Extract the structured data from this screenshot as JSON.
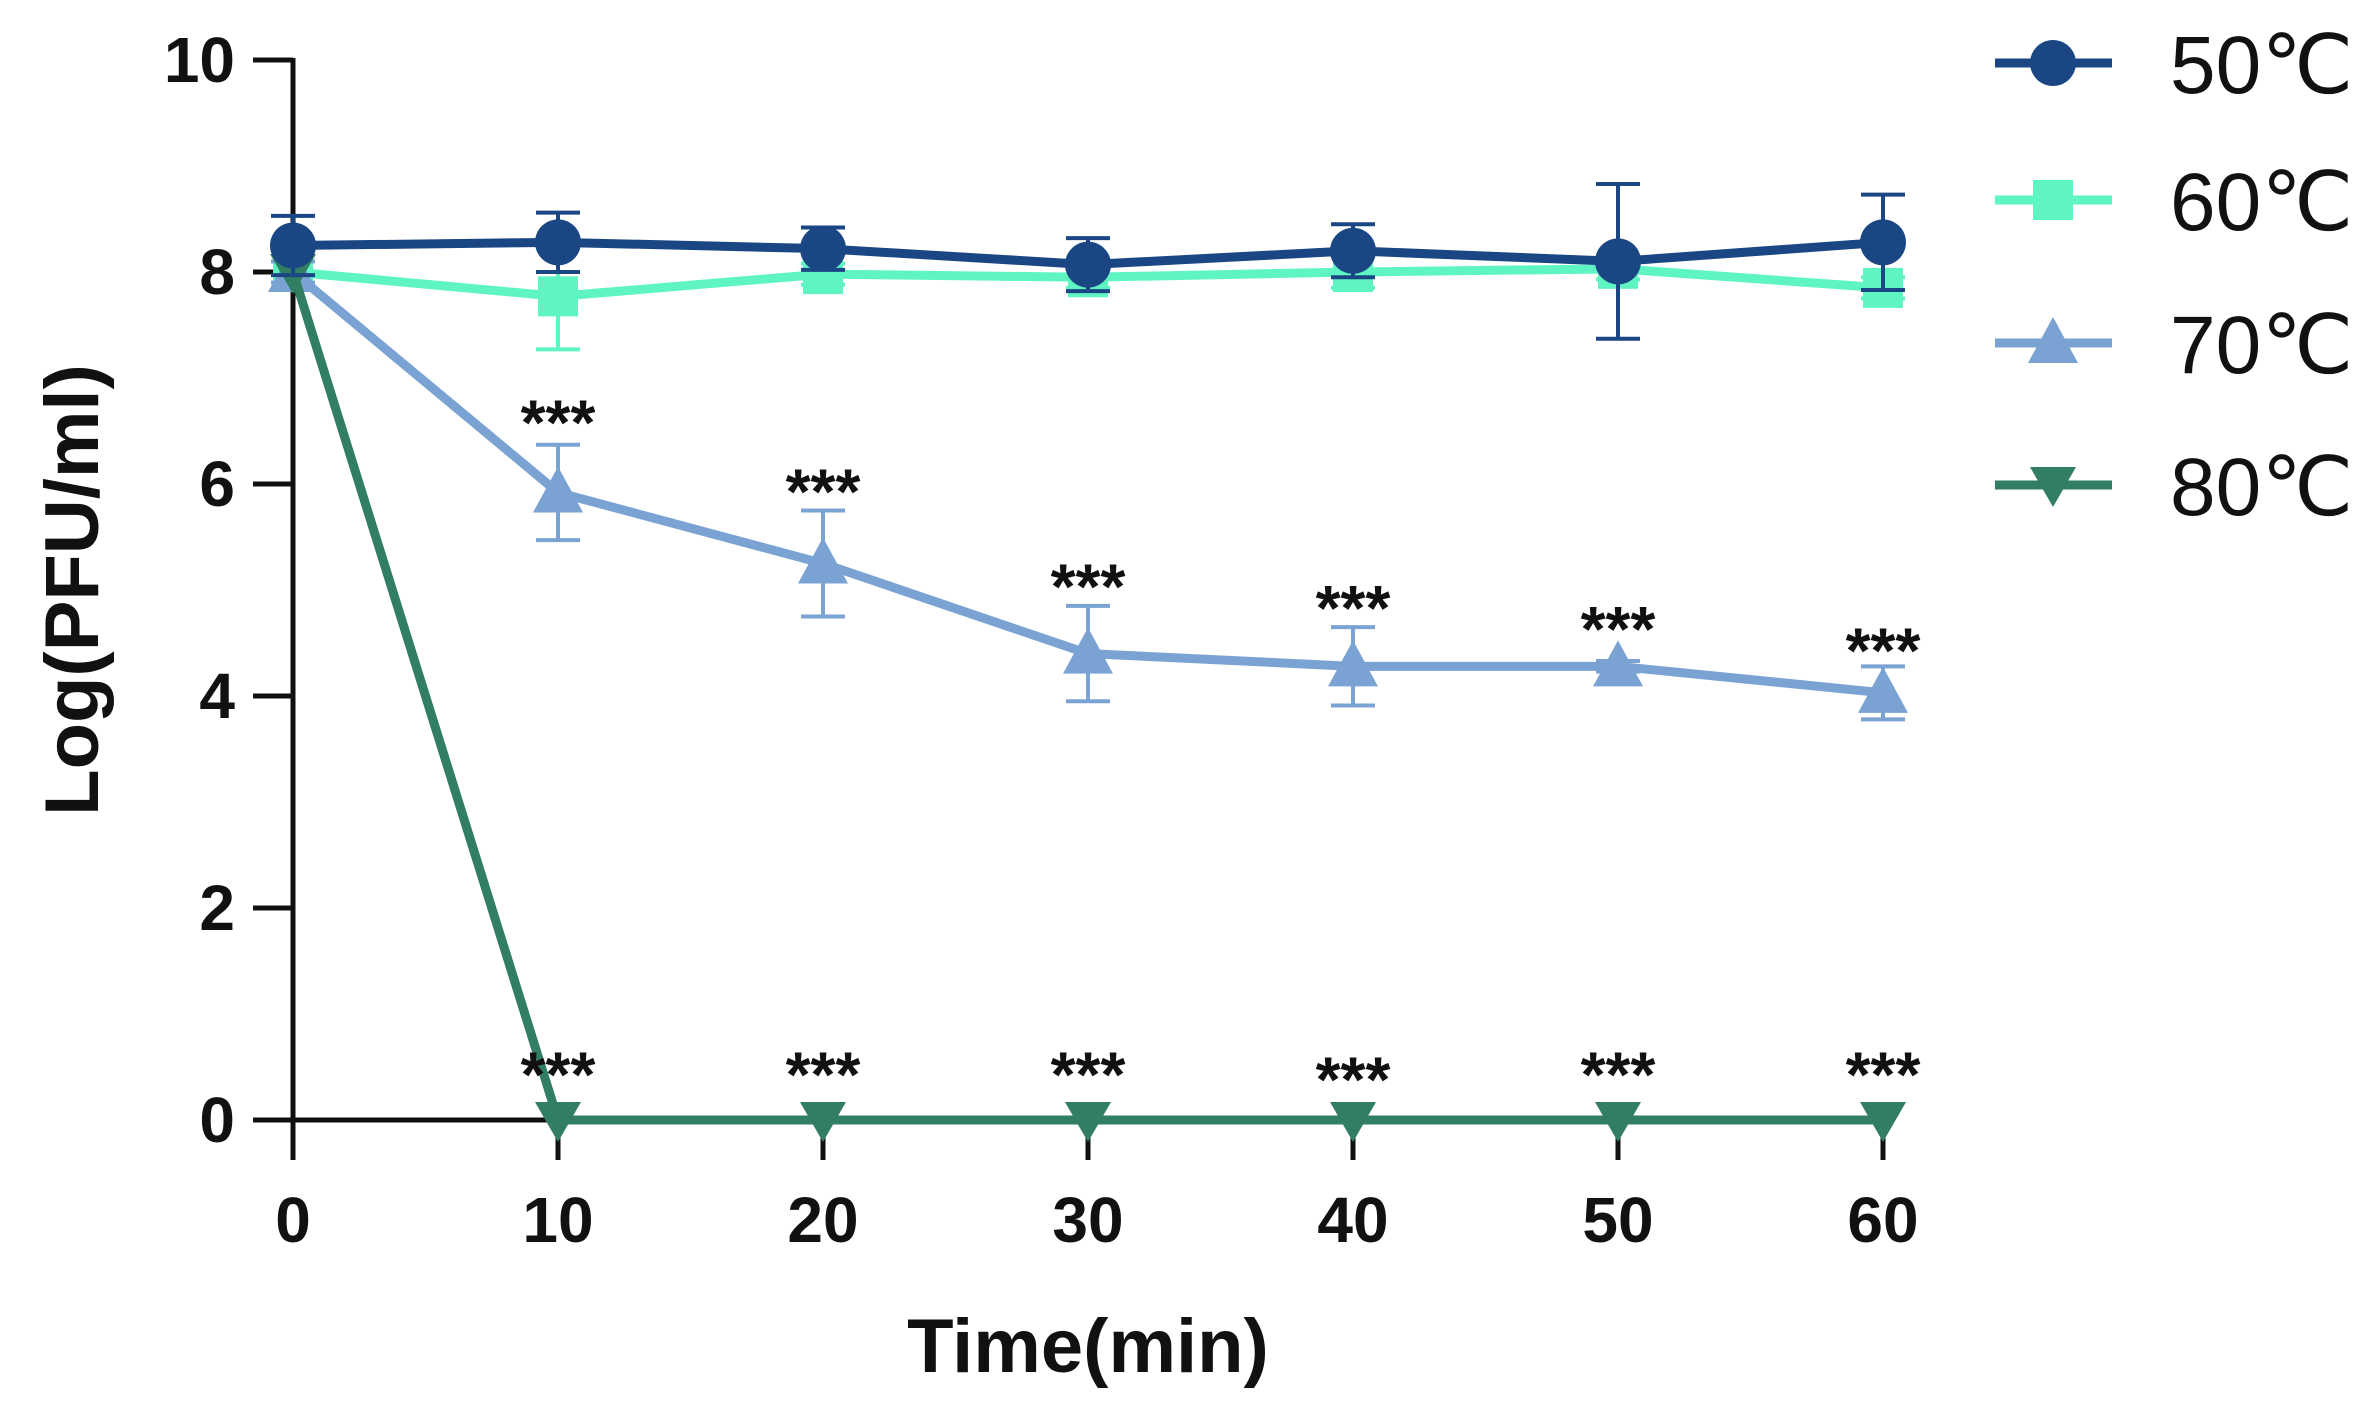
{
  "chart_data": {
    "type": "line",
    "title": "",
    "xlabel": "Time(min)",
    "ylabel": "Log(PFU/ml)",
    "x": [
      0,
      10,
      20,
      30,
      40,
      50,
      60
    ],
    "xticks": [
      "0",
      "10",
      "20",
      "30",
      "40",
      "50",
      "60"
    ],
    "yticks": [
      "0",
      "2",
      "4",
      "6",
      "8",
      "10"
    ],
    "xlim": [
      0,
      60
    ],
    "ylim": [
      0,
      10
    ],
    "grid": false,
    "legend_position": "top-right",
    "series": [
      {
        "name": "50℃",
        "marker": "circle",
        "color": "#1a4683",
        "values": [
          8.25,
          8.28,
          8.22,
          8.07,
          8.2,
          8.1,
          8.28
        ],
        "errors": [
          0.28,
          0.28,
          0.2,
          0.25,
          0.25,
          0.73,
          0.45
        ]
      },
      {
        "name": "60℃",
        "marker": "square",
        "color": "#5ef5c3",
        "values": [
          8.0,
          7.77,
          7.98,
          7.95,
          8.0,
          8.03,
          7.85
        ],
        "errors": [
          0.1,
          0.5,
          0.1,
          0.1,
          0.15,
          0.1,
          0.1
        ]
      },
      {
        "name": "70℃",
        "marker": "triangle-up",
        "color": "#7aa3d3",
        "values": [
          8.0,
          5.92,
          5.25,
          4.4,
          4.28,
          4.28,
          4.03
        ],
        "errors": [
          0.1,
          0.45,
          0.5,
          0.45,
          0.37,
          0.05,
          0.25
        ]
      },
      {
        "name": "80℃",
        "marker": "triangle-down",
        "color": "#317e62",
        "values": [
          8.0,
          0,
          0,
          0,
          0,
          0,
          0
        ],
        "errors": [
          0,
          0,
          0,
          0,
          0,
          0,
          0
        ]
      }
    ],
    "annotations": [
      {
        "text": "***",
        "x": 10,
        "y": 6.6
      },
      {
        "text": "***",
        "x": 20,
        "y": 5.95
      },
      {
        "text": "***",
        "x": 30,
        "y": 5.05
      },
      {
        "text": "***",
        "x": 40,
        "y": 4.85
      },
      {
        "text": "***",
        "x": 50,
        "y": 4.65
      },
      {
        "text": "***",
        "x": 60,
        "y": 4.45
      },
      {
        "text": "***",
        "x": 10,
        "y": 0.45
      },
      {
        "text": "***",
        "x": 20,
        "y": 0.45
      },
      {
        "text": "***",
        "x": 30,
        "y": 0.45
      },
      {
        "text": "***",
        "x": 40,
        "y": 0.4
      },
      {
        "text": "***",
        "x": 50,
        "y": 0.45
      },
      {
        "text": "***",
        "x": 60,
        "y": 0.45
      }
    ]
  }
}
